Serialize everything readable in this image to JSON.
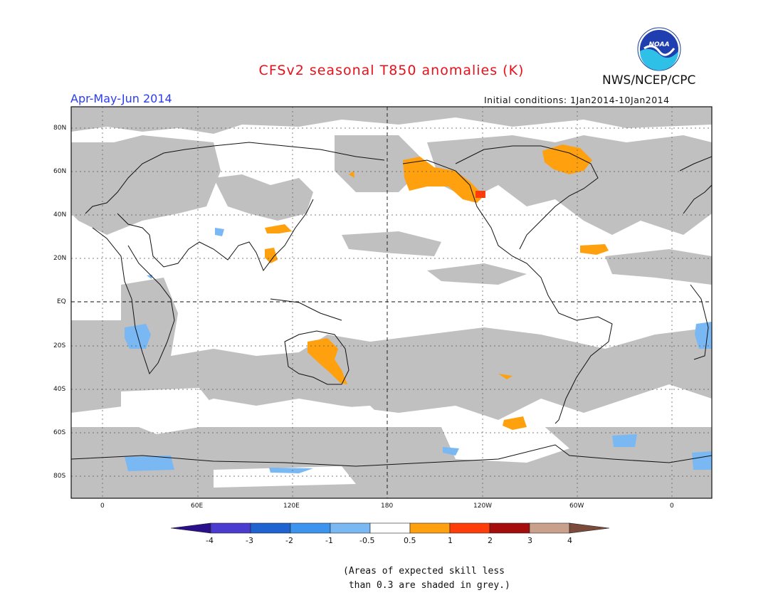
{
  "title": "CFSv2 seasonal T850 anomalies (K)",
  "period": "Apr-May-Jun 2014",
  "organization": "NWS/NCEP/CPC",
  "logo_text": "NOAA",
  "initial_conditions": "Initial conditions: 1Jan2014-10Jan2014",
  "lat_labels": [
    "80N",
    "60N",
    "40N",
    "20N",
    "EQ",
    "20S",
    "40S",
    "60S",
    "80S"
  ],
  "lon_labels": [
    "0",
    "60E",
    "120E",
    "180",
    "120W",
    "60W",
    "0"
  ],
  "colorbar": {
    "labels": [
      "-4",
      "-3",
      "-2",
      "-1",
      "-0.5",
      "0.5",
      "1",
      "2",
      "3",
      "4"
    ],
    "colors": [
      "#2a0f8a",
      "#4a3ccf",
      "#1e63cf",
      "#3d94ee",
      "#7ab8f4",
      "#ffffff",
      "#ffa00e",
      "#ff3d0b",
      "#a50d0d",
      "#c9a08c",
      "#7a4a3a"
    ]
  },
  "note": "(Areas of expected skill less\n than 0.3 are shaded in grey.)",
  "colors": {
    "grey": "#c0c0c0",
    "title": "#e8101a",
    "period": "#2a3cf0"
  }
}
